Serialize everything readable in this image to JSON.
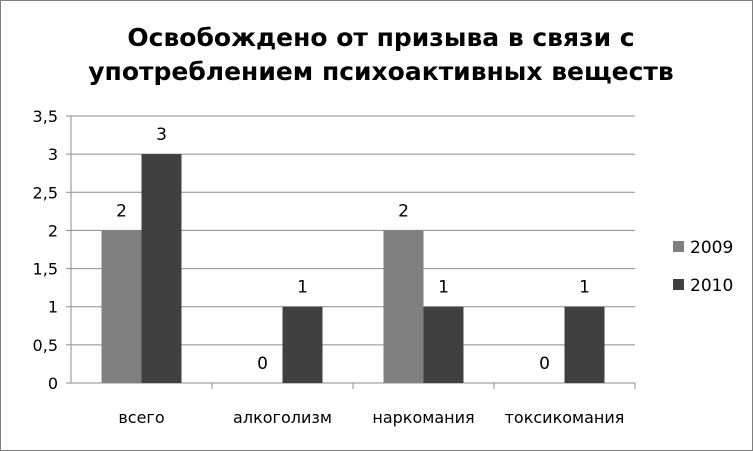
{
  "chart_data": {
    "type": "bar",
    "title_lines": [
      "Освобождено от  призыва в связи с",
      "употреблением психоактивных веществ"
    ],
    "categories": [
      "всего",
      "алкоголизм",
      "наркомания",
      "токсикомания"
    ],
    "series": [
      {
        "name": "2009",
        "values": [
          2,
          0,
          2,
          0
        ],
        "color": "#808080"
      },
      {
        "name": "2010",
        "values": [
          3,
          1,
          1,
          1
        ],
        "color": "#404040"
      }
    ],
    "ylim": [
      0,
      3.5
    ],
    "yticks": [
      "0",
      "0,5",
      "1",
      "1,5",
      "2",
      "2,5",
      "3",
      "3,5"
    ],
    "grid": true,
    "legend": "right",
    "data_labels": true
  }
}
